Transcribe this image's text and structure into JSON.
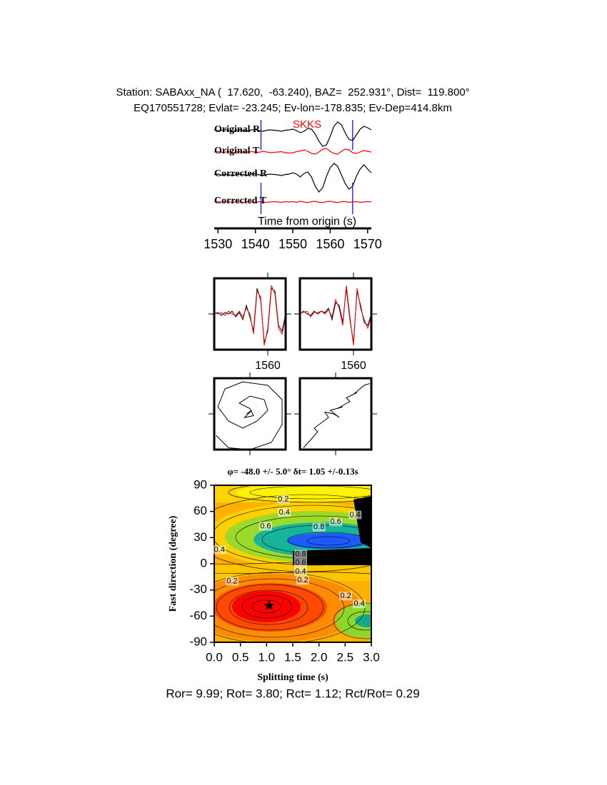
{
  "header": {
    "station": "Station: SABAxx_NA (  17.620,  -63.240), BAZ=  252.931°, Dist=  119.800°",
    "event": "EQ170551728; Evlat= -23.245; Ev-lon=-178.835; Ev-Dep=414.8km"
  },
  "footer": "Ror= 9.99; Rot= 3.80; Rct= 1.12; Rct/Rot= 0.29",
  "chart_data": [
    {
      "type": "waveform",
      "phase": "SKKS",
      "xlabel": "Time from origin (s)",
      "xlim": [
        1529,
        1571
      ],
      "xticks": [
        1530,
        1540,
        1550,
        1560,
        1570
      ],
      "markers": [
        1541.5,
        1566
      ],
      "marker_color": "#0000ff",
      "x": [
        1529,
        1530,
        1531,
        1532,
        1533,
        1534,
        1535,
        1536,
        1537,
        1538,
        1539,
        1540,
        1541,
        1542,
        1543,
        1544,
        1545,
        1546,
        1547,
        1548,
        1549,
        1550,
        1551,
        1552,
        1553,
        1554,
        1555,
        1556,
        1557,
        1558,
        1559,
        1560,
        1561,
        1562,
        1563,
        1564,
        1565,
        1566,
        1567,
        1568,
        1569,
        1570,
        1571
      ],
      "series": [
        {
          "name": "Original R",
          "color": "#000000",
          "values": [
            0.1,
            -0.05,
            0.05,
            0.1,
            0,
            -0.1,
            0.05,
            0.1,
            0,
            -0.05,
            0.1,
            0.15,
            0,
            -0.1,
            0.05,
            0.1,
            0.05,
            0,
            -0.1,
            0.05,
            0.1,
            0.2,
            0,
            -0.3,
            -0.1,
            0.3,
            0.2,
            -0.5,
            -1.5,
            -2.2,
            -2,
            -0.8,
            0.6,
            1.2,
            0.8,
            -0.3,
            -1.2,
            -1.4,
            -0.6,
            0.2,
            0.6,
            0.4,
            0.1
          ]
        },
        {
          "name": "Original T",
          "color": "#ff0000",
          "values": [
            0,
            0.05,
            -0.05,
            0,
            0.05,
            -0.1,
            0,
            0.05,
            -0.05,
            0,
            0.05,
            0,
            -0.05,
            0.1,
            0,
            -0.1,
            -0.05,
            0,
            0.05,
            -0.1,
            -0.15,
            -0.1,
            0.05,
            0.15,
            0.3,
            0.1,
            -0.2,
            -0.3,
            0,
            0.4,
            0.5,
            0.1,
            -0.2,
            -0.3,
            0.1,
            0.4,
            0.3,
            -0.1,
            -0.2,
            0,
            0.2,
            0.1,
            0
          ]
        },
        {
          "name": "Corrected R",
          "color": "#000000",
          "values": [
            0.05,
            0.1,
            -0.05,
            0.05,
            0,
            -0.1,
            0.05,
            0.1,
            0,
            -0.05,
            0.1,
            0.15,
            0,
            -0.1,
            0.05,
            0.1,
            0.05,
            0,
            -0.1,
            0.05,
            0.1,
            0.3,
            0.1,
            -0.3,
            0.2,
            0.4,
            -0.3,
            -1.6,
            -2.4,
            -1.8,
            -0.2,
            1,
            1.6,
            1.2,
            0,
            -1.2,
            -2,
            -1.6,
            -0.2,
            0.8,
            1.4,
            0.8,
            0.3
          ]
        },
        {
          "name": "Corrected T",
          "color": "#ff0000",
          "values": [
            0,
            0.05,
            -0.05,
            0.05,
            0,
            -0.05,
            0.05,
            0,
            -0.05,
            0.05,
            0,
            -0.05,
            0.05,
            0,
            -0.05,
            0,
            0.05,
            0,
            -0.05,
            0.05,
            0,
            0.05,
            -0.05,
            0.1,
            0,
            -0.1,
            0.05,
            0.1,
            -0.05,
            -0.1,
            0.05,
            0.1,
            0,
            -0.1,
            0.05,
            0.05,
            -0.05,
            0,
            0.05,
            -0.05,
            0,
            0.05,
            0
          ]
        }
      ]
    },
    {
      "type": "line",
      "xlim": [
        1545,
        1565
      ],
      "xticks": [
        1560
      ],
      "x": [
        1545,
        1546,
        1547,
        1548,
        1549,
        1550,
        1551,
        1552,
        1553,
        1554,
        1555,
        1556,
        1557,
        1558,
        1559,
        1560,
        1561,
        1562,
        1563,
        1564,
        1565
      ],
      "series": [
        {
          "color": "#000000",
          "values": [
            0,
            0.05,
            -0.05,
            0.05,
            0,
            0.1,
            -0.1,
            0.05,
            -0.2,
            0.3,
            -0.1,
            -0.6,
            0.9,
            0.5,
            -1,
            -0.6,
            0.9,
            0.8,
            -0.4,
            -0.6,
            0
          ]
        },
        {
          "color": "#ff0000",
          "values": [
            0.05,
            0,
            0.05,
            -0.05,
            0.1,
            0,
            -0.05,
            0.1,
            -0.1,
            0.2,
            0,
            -0.7,
            0.8,
            0.6,
            -1.1,
            -0.5,
            1,
            0.7,
            -0.5,
            -0.7,
            -0.1
          ]
        }
      ]
    },
    {
      "type": "line",
      "xlim": [
        1545,
        1565
      ],
      "xticks": [
        1560
      ],
      "x": [
        1545,
        1546,
        1547,
        1548,
        1549,
        1550,
        1551,
        1552,
        1553,
        1554,
        1555,
        1556,
        1557,
        1558,
        1559,
        1560,
        1561,
        1562,
        1563,
        1564,
        1565
      ],
      "series": [
        {
          "color": "#000000",
          "values": [
            0,
            0.1,
            0,
            -0.05,
            0.1,
            0,
            0.1,
            0.05,
            0.2,
            -0.2,
            0.4,
            0.3,
            -0.3,
            0.9,
            -0.2,
            -1,
            0.8,
            0.3,
            -0.3,
            -0.4,
            0
          ]
        },
        {
          "color": "#ff0000",
          "values": [
            0.05,
            0.05,
            0.1,
            -0.1,
            0.05,
            0.05,
            0.1,
            0,
            0.15,
            -0.1,
            0.5,
            0.2,
            -0.4,
            1,
            -0.1,
            -1.1,
            0.9,
            0.2,
            -0.2,
            -0.5,
            -0.1
          ]
        }
      ]
    },
    {
      "type": "particle",
      "xlim": [
        -1,
        1
      ],
      "ylim": [
        -1,
        1
      ],
      "series": [
        {
          "color": "#000000",
          "x": [
            -0.1,
            0.05,
            -0.15,
            0.1,
            0,
            -0.3,
            0,
            0.4,
            0.5,
            0.2,
            -0.2,
            -0.6,
            -0.9,
            -0.7,
            -0.2,
            0.5,
            0.9,
            0.9,
            0.6,
            0,
            -0.6,
            -0.95
          ],
          "values": [
            0,
            0.1,
            -0.1,
            -0.05,
            0.15,
            0.3,
            0.5,
            0.4,
            0.1,
            -0.2,
            -0.4,
            -0.2,
            0.2,
            0.7,
            0.9,
            0.8,
            0.4,
            -0.3,
            -0.8,
            -1,
            -0.95,
            -0.6
          ]
        }
      ]
    },
    {
      "type": "particle",
      "xlim": [
        -1,
        1
      ],
      "ylim": [
        -1,
        1
      ],
      "series": [
        {
          "color": "#000000",
          "x": [
            -0.9,
            -0.5,
            -0.6,
            -0.2,
            -0.3,
            -0.05,
            0.1,
            -0.15,
            0.2,
            0.05,
            0.4,
            0.3,
            0.6,
            0.5,
            0.8,
            0.95
          ],
          "values": [
            -0.95,
            -0.5,
            -0.4,
            -0.1,
            0.05,
            0,
            -0.1,
            0.1,
            0.2,
            0.15,
            0.35,
            0.45,
            0.6,
            0.55,
            0.8,
            0.85
          ]
        }
      ]
    },
    {
      "type": "contour",
      "title": "φ= -48.0 +/- 5.0° δt= 1.05 +/-0.13s",
      "xlabel": "Splitting time (s)",
      "ylabel": "Fast direction (degree)",
      "xlim": [
        0,
        3
      ],
      "ylim": [
        -90,
        90
      ],
      "xticks": [
        {
          "value": 0,
          "label": "0.0"
        },
        0.5,
        {
          "value": 1,
          "label": "1.0"
        },
        1.5,
        {
          "value": 2,
          "label": "2.0"
        },
        2.5,
        {
          "value": 3,
          "label": "3.0"
        }
      ],
      "yticks": [
        -90,
        -60,
        -30,
        0,
        30,
        60,
        90
      ],
      "best": [
        1.05,
        -48
      ],
      "contour_labels": [
        {
          "x": 1.32,
          "y": 74,
          "value": 0.2
        },
        {
          "x": 1.34,
          "y": 59,
          "value": 0.4
        },
        {
          "x": 2.69,
          "y": 56,
          "value": 0.4
        },
        {
          "x": 2.32,
          "y": 48,
          "value": 0.6
        },
        {
          "x": 2.0,
          "y": 42,
          "value": 0.8
        },
        {
          "x": 0.98,
          "y": 43,
          "value": 0.6
        },
        {
          "x": 0.1,
          "y": 16,
          "value": 0.4
        },
        {
          "x": 1.65,
          "y": 11,
          "value": 0.8
        },
        {
          "x": 1.65,
          "y": 1,
          "value": 0.6
        },
        {
          "x": 1.65,
          "y": -9,
          "value": 0.4
        },
        {
          "x": 1.69,
          "y": -19,
          "value": 0.2
        },
        {
          "x": 0.34,
          "y": -20,
          "value": 0.2
        },
        {
          "x": 2.51,
          "y": -37,
          "value": 0.2
        },
        {
          "x": 2.77,
          "y": -46,
          "value": 0.4
        }
      ]
    }
  ]
}
